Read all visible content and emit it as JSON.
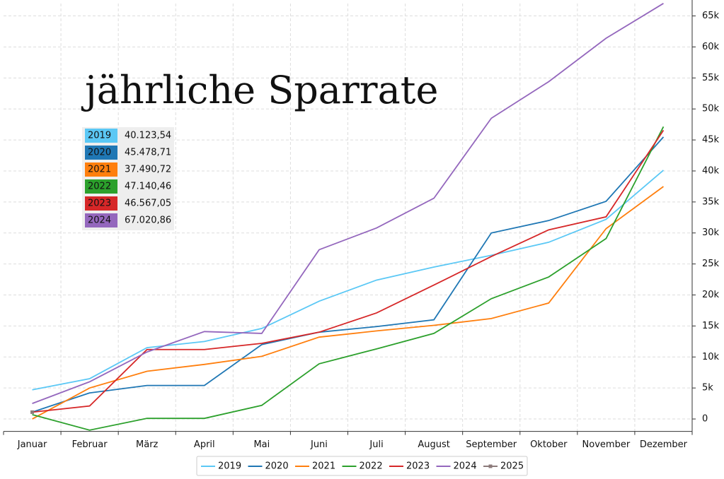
{
  "chart_data": {
    "type": "line",
    "title": "jährliche Sparrate",
    "categories": [
      "Januar",
      "Februar",
      "März",
      "April",
      "Mai",
      "Juni",
      "Juli",
      "August",
      "September",
      "Oktober",
      "November",
      "Dezember"
    ],
    "series": [
      {
        "name": "2019",
        "color": "#5bc8f5",
        "total_label": "40.123,54",
        "values": [
          4700,
          6500,
          11500,
          12500,
          14600,
          19000,
          22400,
          24500,
          26400,
          28500,
          32200,
          40123.54
        ]
      },
      {
        "name": "2020",
        "color": "#1f77b4",
        "total_label": "45.478,71",
        "values": [
          1100,
          4200,
          5400,
          5400,
          12000,
          14000,
          14900,
          16000,
          30000,
          32000,
          35100,
          45478.71
        ]
      },
      {
        "name": "2021",
        "color": "#ff7f0e",
        "total_label": "37.490,72",
        "values": [
          0,
          5000,
          7700,
          8800,
          10100,
          13200,
          14200,
          15100,
          16200,
          18700,
          30700,
          37490.72
        ]
      },
      {
        "name": "2022",
        "color": "#2ca02c",
        "total_label": "47.140,46",
        "values": [
          700,
          -1800,
          100,
          100,
          2200,
          8900,
          11300,
          13800,
          19400,
          22900,
          29100,
          47140.46
        ]
      },
      {
        "name": "2023",
        "color": "#d62728",
        "total_label": "46.567,05",
        "values": [
          1100,
          2100,
          11200,
          11200,
          12200,
          14000,
          17100,
          21600,
          26200,
          30500,
          32600,
          46567.05
        ]
      },
      {
        "name": "2024",
        "color": "#9467bd",
        "total_label": "67.020,86",
        "values": [
          2500,
          6000,
          10800,
          14100,
          13800,
          27300,
          30800,
          35600,
          48500,
          54400,
          61400,
          67020.86
        ]
      },
      {
        "name": "2025",
        "color": "#8c7b7b",
        "markers": true,
        "values": [
          1100,
          null,
          null,
          null,
          null,
          null,
          null,
          null,
          null,
          null,
          null,
          null
        ]
      }
    ],
    "ylim": [
      -2000,
      67000
    ],
    "yticks": [
      0,
      {
        "value": 5000,
        "label": "5k"
      },
      {
        "value": 10000,
        "label": "10k"
      },
      {
        "value": 15000,
        "label": "15k"
      },
      {
        "value": 20000,
        "label": "20k"
      },
      {
        "value": 25000,
        "label": "25k"
      },
      {
        "value": 30000,
        "label": "30k"
      },
      {
        "value": 35000,
        "label": "35k"
      },
      {
        "value": 40000,
        "label": "40k"
      },
      {
        "value": 45000,
        "label": "45k"
      },
      {
        "value": 50000,
        "label": "50k"
      },
      {
        "value": 55000,
        "label": "55k"
      },
      {
        "value": 60000,
        "label": "60k"
      },
      {
        "value": 65000,
        "label": "65k"
      }
    ],
    "grid": true,
    "legend": "bottom"
  }
}
